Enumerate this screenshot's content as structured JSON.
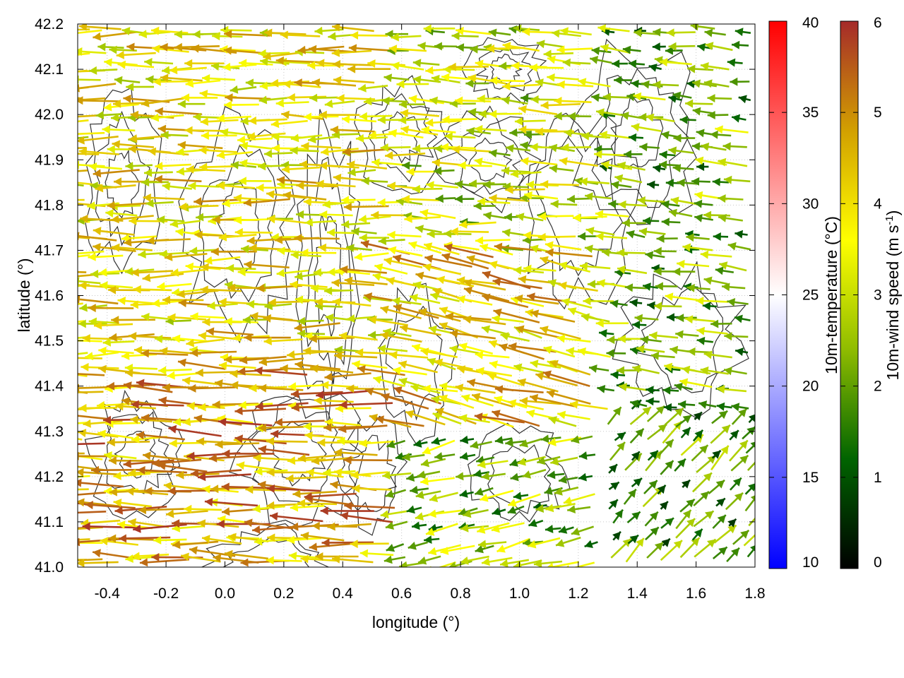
{
  "chart_data": {
    "type": "vector-field",
    "xlabel": "longitude (°)",
    "ylabel": "latitude (°)",
    "xlim": [
      -0.5,
      1.8
    ],
    "ylim": [
      41.0,
      42.2
    ],
    "xticks": [
      "-0.4",
      "-0.2",
      "0.0",
      "0.2",
      "0.4",
      "0.6",
      "0.8",
      "1.0",
      "1.2",
      "1.4",
      "1.6",
      "1.8"
    ],
    "yticks": [
      "41.0",
      "41.1",
      "41.2",
      "41.3",
      "41.4",
      "41.5",
      "41.6",
      "41.7",
      "41.8",
      "41.9",
      "42.0",
      "42.1",
      "42.2"
    ],
    "grid": true,
    "colorbars": [
      {
        "label": "10m-temperature (°C)",
        "range": [
          10,
          40
        ],
        "ticks": [
          "10",
          "15",
          "20",
          "25",
          "30",
          "35",
          "40"
        ],
        "colors": [
          "#0000ff",
          "#ffffff",
          "#ff0000"
        ]
      },
      {
        "label": "10m-wind speed (m s-1)",
        "label_main": "10m-wind speed (m s",
        "label_sup": "-1",
        "label_close": ")",
        "range": [
          0,
          6
        ],
        "ticks": [
          "0",
          "1",
          "2",
          "3",
          "4",
          "5",
          "6"
        ],
        "colors": [
          "#000000",
          "#006400",
          "#8fbc00",
          "#ffff00",
          "#d2a000",
          "#a52a2a"
        ]
      }
    ],
    "wind_regions": [
      {
        "x": [
          -0.5,
          0.6
        ],
        "y": [
          41.0,
          41.45
        ],
        "u": -1.0,
        "v": 0.03,
        "speed": 4.6
      },
      {
        "x": [
          -0.5,
          0.6
        ],
        "y": [
          41.45,
          42.2
        ],
        "u": -1.0,
        "v": 0.0,
        "speed": 3.8
      },
      {
        "x": [
          0.6,
          1.3
        ],
        "y": [
          41.3,
          41.7
        ],
        "u": -0.95,
        "v": 0.2,
        "speed": 4.2
      },
      {
        "x": [
          0.6,
          1.3
        ],
        "y": [
          41.7,
          42.2
        ],
        "u": -1.0,
        "v": 0.05,
        "speed": 3.0
      },
      {
        "x": [
          0.6,
          1.3
        ],
        "y": [
          41.0,
          41.3
        ],
        "u": -0.9,
        "v": -0.2,
        "speed": 2.4
      },
      {
        "x": [
          1.3,
          1.8
        ],
        "y": [
          41.0,
          41.35
        ],
        "u": 0.7,
        "v": 0.7,
        "speed": 1.8
      },
      {
        "x": [
          1.3,
          1.8
        ],
        "y": [
          41.35,
          42.2
        ],
        "u": -1.0,
        "v": 0.1,
        "speed": 2.2
      }
    ]
  }
}
